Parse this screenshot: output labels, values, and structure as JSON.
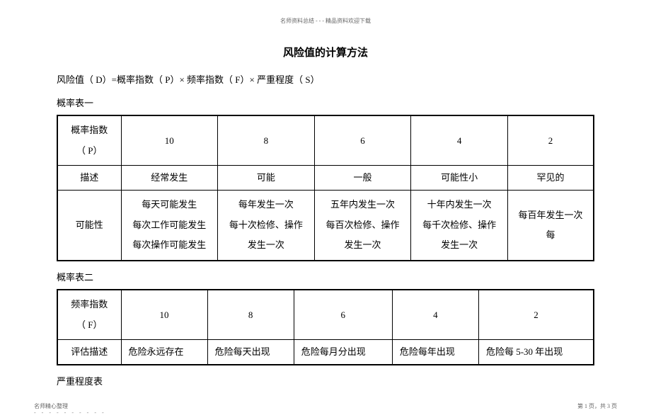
{
  "topHeader": "名师资料总结 - - - 精品资料欢迎下载",
  "title": "风险值的计算方法",
  "formula": "风险值（ D）=概率指数（ P）×  频率指数（  F）×  严重程度（  S）",
  "table1": {
    "caption": "概率表一",
    "rows": [
      {
        "label": "概率指数\n（ P）",
        "cells": [
          "10",
          "8",
          "6",
          "4",
          "2"
        ]
      },
      {
        "label": "描述",
        "cells": [
          "经常发生",
          "可能",
          "一般",
          "可能性小",
          "罕见的"
        ]
      },
      {
        "label": "可能性",
        "cells": [
          "每天可能发生\n每次工作可能发生\n每次操作可能发生",
          "每年发生一次\n每十次检修、操作\n发生一次",
          "五年内发生一次\n每百次检修、操作\n发生一次",
          "十年内发生一次\n每千次检修、操作\n发生一次",
          "每百年发生一次\n每"
        ]
      }
    ]
  },
  "table2": {
    "caption": "概率表二",
    "rows": [
      {
        "label": "频率指数\n（ F）",
        "cells": [
          "10",
          "8",
          "6",
          "4",
          "2"
        ]
      },
      {
        "label": "评估描述",
        "cells": [
          "危险永远存在",
          "危险每天出现",
          "危险每月分出现",
          "危险每年出现",
          "危险每 5-30 年出现"
        ]
      }
    ]
  },
  "table3Caption": "严重程度表",
  "footerLeft": "名师精心整理",
  "footerRight": "第 1 页，共 3 页"
}
